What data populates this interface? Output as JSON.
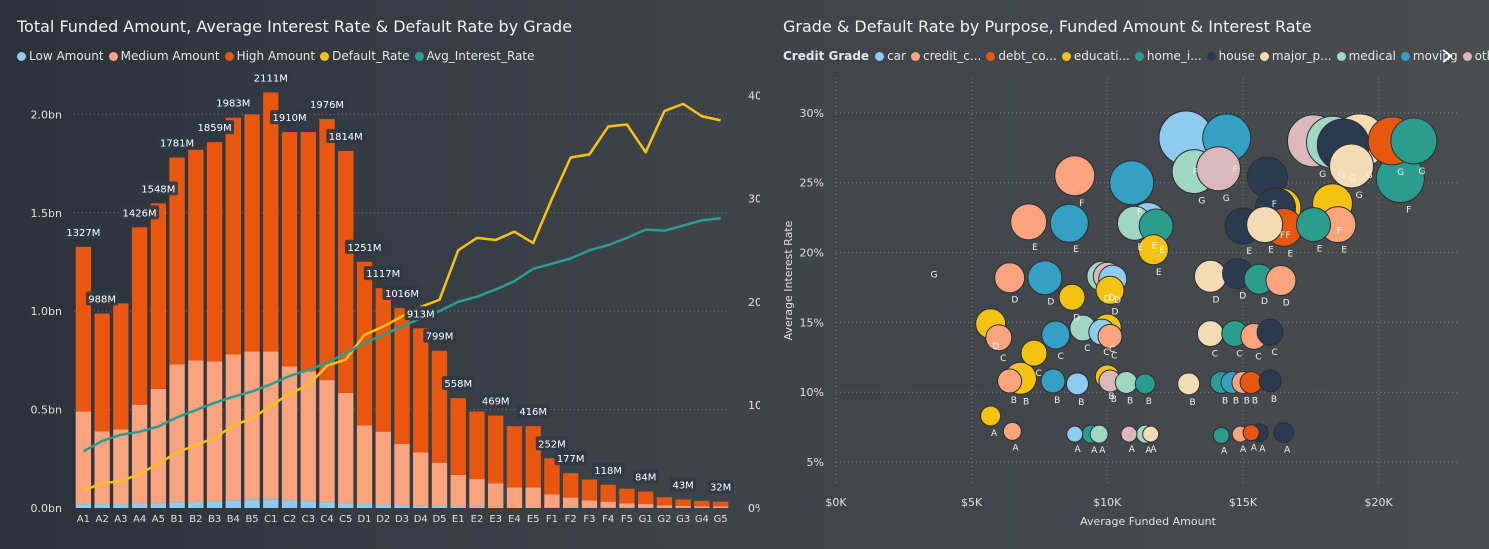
{
  "chart_data": [
    {
      "type": "bar",
      "title": "Total Funded Amount, Average Interest Rate & Default Rate by Grade",
      "categories": [
        "A1",
        "A2",
        "A3",
        "A4",
        "A5",
        "B1",
        "B2",
        "B3",
        "B4",
        "B5",
        "C1",
        "C2",
        "C3",
        "C4",
        "C5",
        "D1",
        "D2",
        "D3",
        "D4",
        "D5",
        "E1",
        "E2",
        "E3",
        "E4",
        "E5",
        "F1",
        "F2",
        "F3",
        "F4",
        "F5",
        "G1",
        "G2",
        "G3",
        "G4",
        "G5"
      ],
      "y_ticks": [
        "0.0bn",
        "0.5bn",
        "1.0bn",
        "1.5bn",
        "2.0bn"
      ],
      "y2_ticks": [
        "0%",
        "10%",
        "20%",
        "30%",
        "40%"
      ],
      "ylim": [
        0,
        2.2
      ],
      "y2lim": [
        0,
        0.42
      ],
      "total_labels": [
        "1327M",
        "988M",
        "",
        "1426M",
        "1548M",
        "1781M",
        "",
        "1859M",
        "1983M",
        "",
        "2111M",
        "1910M",
        "",
        "1976M",
        "1814M",
        "1251M",
        "1117M",
        "1016M",
        "913M",
        "799M",
        "558M",
        "",
        "469M",
        "",
        "416M",
        "252M",
        "177M",
        "",
        "118M",
        "",
        "84M",
        "",
        "43M",
        "",
        "32M"
      ],
      "series": [
        {
          "name": "Low Amount",
          "color": "#8fcdf0",
          "kind": "bar",
          "values": [
            0.02,
            0.02,
            0.02,
            0.025,
            0.025,
            0.03,
            0.03,
            0.035,
            0.04,
            0.045,
            0.045,
            0.04,
            0.035,
            0.03,
            0.025,
            0.02,
            0.018,
            0.015,
            0.012,
            0.01,
            0.008,
            0.007,
            0.006,
            0.005,
            0.005,
            0.004,
            0.003,
            0.003,
            0.002,
            0.002,
            0.002,
            0.001,
            0.001,
            0.001,
            0.001
          ]
        },
        {
          "name": "Medium Amount",
          "color": "#f9a47f",
          "kind": "bar",
          "values": [
            0.47,
            0.37,
            0.38,
            0.5,
            0.58,
            0.7,
            0.72,
            0.71,
            0.74,
            0.75,
            0.75,
            0.68,
            0.66,
            0.62,
            0.56,
            0.4,
            0.37,
            0.31,
            0.27,
            0.22,
            0.16,
            0.14,
            0.12,
            0.1,
            0.1,
            0.065,
            0.05,
            0.035,
            0.03,
            0.022,
            0.018,
            0.012,
            0.01,
            0.008,
            0.007
          ]
        },
        {
          "name": "High Amount",
          "color": "#e8560f",
          "kind": "bar",
          "values": [
            0.837,
            0.598,
            0.64,
            0.901,
            0.943,
            1.051,
            1.07,
            1.114,
            1.203,
            1.205,
            1.316,
            1.19,
            1.215,
            1.326,
            1.229,
            0.831,
            0.729,
            0.691,
            0.631,
            0.569,
            0.39,
            0.343,
            0.344,
            0.311,
            0.311,
            0.183,
            0.124,
            0.107,
            0.086,
            0.074,
            0.064,
            0.042,
            0.032,
            0.027,
            0.024
          ]
        },
        {
          "name": "Default_Rate",
          "color": "#f5c214",
          "kind": "line",
          "values": [
            0.017,
            0.024,
            0.026,
            0.033,
            0.043,
            0.054,
            0.061,
            0.068,
            0.08,
            0.087,
            0.099,
            0.111,
            0.119,
            0.138,
            0.144,
            0.168,
            0.176,
            0.186,
            0.195,
            0.202,
            0.25,
            0.262,
            0.26,
            0.268,
            0.257,
            0.3,
            0.34,
            0.343,
            0.37,
            0.372,
            0.345,
            0.385,
            0.392,
            0.38,
            0.376
          ]
        },
        {
          "name": "Avg_Interest_Rate",
          "color": "#2a9d8f",
          "kind": "line",
          "values": [
            0.055,
            0.065,
            0.071,
            0.074,
            0.079,
            0.088,
            0.095,
            0.102,
            0.108,
            0.113,
            0.12,
            0.128,
            0.134,
            0.141,
            0.15,
            0.16,
            0.168,
            0.176,
            0.184,
            0.191,
            0.2,
            0.205,
            0.212,
            0.22,
            0.232,
            0.237,
            0.242,
            0.25,
            0.255,
            0.262,
            0.27,
            0.269,
            0.274,
            0.279,
            0.281
          ]
        }
      ]
    },
    {
      "type": "scatter",
      "title": "Grade & Default Rate by Purpose, Funded Amount & Interest Rate",
      "xlabel": "Average Funded Amount",
      "ylabel": "Average Interest Rate",
      "x_ticks": [
        "$0K",
        "$5K",
        "$10K",
        "$15K",
        "$20K"
      ],
      "y_ticks": [
        "5%",
        "10%",
        "15%",
        "20%",
        "25%",
        "30%"
      ],
      "xlim": [
        0,
        23000
      ],
      "ylim": [
        0.035,
        0.325
      ],
      "legend_title": "Credit Grade",
      "legend": [
        {
          "label": "car",
          "color": "#8fcdf0"
        },
        {
          "label": "credit_c...",
          "color": "#f9a47f"
        },
        {
          "label": "debt_co...",
          "color": "#e8560f"
        },
        {
          "label": "educati...",
          "color": "#f5c214"
        },
        {
          "label": "home_i...",
          "color": "#2a9d8f"
        },
        {
          "label": "house",
          "color": "#2b3a4e"
        },
        {
          "label": "major_p...",
          "color": "#f3dcb4"
        },
        {
          "label": "medical",
          "color": "#9fd6c4"
        },
        {
          "label": "moving",
          "color": "#34a0c4"
        },
        {
          "label": "other",
          "color": "#dbb8bc"
        }
      ],
      "points": [
        {
          "x": 3600,
          "y": 0.19,
          "r": 1,
          "c": 3,
          "g": "G"
        },
        {
          "x": 5700,
          "y": 0.083,
          "r": 10,
          "c": 3,
          "g": "A"
        },
        {
          "x": 6500,
          "y": 0.072,
          "r": 9,
          "c": 1,
          "g": "A"
        },
        {
          "x": 8800,
          "y": 0.07,
          "r": 8,
          "c": 0,
          "g": "A"
        },
        {
          "x": 9400,
          "y": 0.07,
          "r": 9,
          "c": 4,
          "g": "A"
        },
        {
          "x": 9700,
          "y": 0.07,
          "r": 9,
          "c": 7,
          "g": "A"
        },
        {
          "x": 10800,
          "y": 0.07,
          "r": 8,
          "c": 9,
          "g": "A"
        },
        {
          "x": 11400,
          "y": 0.07,
          "r": 9,
          "c": 7,
          "g": "A"
        },
        {
          "x": 11600,
          "y": 0.07,
          "r": 8,
          "c": 6,
          "g": "A"
        },
        {
          "x": 14200,
          "y": 0.069,
          "r": 8,
          "c": 4,
          "g": "A"
        },
        {
          "x": 14900,
          "y": 0.07,
          "r": 8,
          "c": 1,
          "g": "A"
        },
        {
          "x": 15300,
          "y": 0.071,
          "r": 8,
          "c": 2,
          "g": "A"
        },
        {
          "x": 15600,
          "y": 0.071,
          "r": 9,
          "c": 5,
          "g": "A"
        },
        {
          "x": 16500,
          "y": 0.071,
          "r": 10,
          "c": 5,
          "g": "A"
        },
        {
          "x": 6400,
          "y": 0.108,
          "r": 12,
          "c": 1,
          "g": "B"
        },
        {
          "x": 6800,
          "y": 0.11,
          "r": 16,
          "c": 3,
          "g": "B"
        },
        {
          "x": 8000,
          "y": 0.108,
          "r": 12,
          "c": 8,
          "g": "B"
        },
        {
          "x": 8900,
          "y": 0.106,
          "r": 11,
          "c": 0,
          "g": "B"
        },
        {
          "x": 10000,
          "y": 0.111,
          "r": 12,
          "c": 3,
          "g": "B"
        },
        {
          "x": 10100,
          "y": 0.108,
          "r": 11,
          "c": 9,
          "g": "B"
        },
        {
          "x": 10700,
          "y": 0.107,
          "r": 11,
          "c": 7,
          "g": "B"
        },
        {
          "x": 11400,
          "y": 0.106,
          "r": 10,
          "c": 4,
          "g": "B"
        },
        {
          "x": 13000,
          "y": 0.106,
          "r": 11,
          "c": 6,
          "g": "B"
        },
        {
          "x": 14200,
          "y": 0.107,
          "r": 11,
          "c": 4,
          "g": "B"
        },
        {
          "x": 14600,
          "y": 0.107,
          "r": 11,
          "c": 8,
          "g": "B"
        },
        {
          "x": 15000,
          "y": 0.107,
          "r": 11,
          "c": 1,
          "g": "B"
        },
        {
          "x": 15300,
          "y": 0.107,
          "r": 11,
          "c": 2,
          "g": "B"
        },
        {
          "x": 16000,
          "y": 0.108,
          "r": 11,
          "c": 5,
          "g": "B"
        },
        {
          "x": 5700,
          "y": 0.149,
          "r": 15,
          "c": 3,
          "g": "D"
        },
        {
          "x": 6000,
          "y": 0.139,
          "r": 13,
          "c": 1,
          "g": "C"
        },
        {
          "x": 7300,
          "y": 0.128,
          "r": 13,
          "c": 3,
          "g": "C"
        },
        {
          "x": 8100,
          "y": 0.141,
          "r": 14,
          "c": 8,
          "g": "C"
        },
        {
          "x": 9100,
          "y": 0.146,
          "r": 13,
          "c": 7,
          "g": "C"
        },
        {
          "x": 9800,
          "y": 0.143,
          "r": 13,
          "c": 0,
          "g": "C"
        },
        {
          "x": 10000,
          "y": 0.146,
          "r": 14,
          "c": 3,
          "g": "C"
        },
        {
          "x": 10100,
          "y": 0.14,
          "r": 12,
          "c": 1,
          "g": "C"
        },
        {
          "x": 13800,
          "y": 0.142,
          "r": 13,
          "c": 6,
          "g": "C"
        },
        {
          "x": 14700,
          "y": 0.142,
          "r": 13,
          "c": 4,
          "g": "C"
        },
        {
          "x": 15400,
          "y": 0.14,
          "r": 13,
          "c": 1,
          "g": "C"
        },
        {
          "x": 16000,
          "y": 0.143,
          "r": 13,
          "c": 5,
          "g": "C"
        },
        {
          "x": 6400,
          "y": 0.182,
          "r": 15,
          "c": 1,
          "g": "D"
        },
        {
          "x": 7700,
          "y": 0.182,
          "r": 17,
          "c": 8,
          "g": "D"
        },
        {
          "x": 8700,
          "y": 0.168,
          "r": 13,
          "c": 3,
          "g": "D"
        },
        {
          "x": 9800,
          "y": 0.183,
          "r": 15,
          "c": 7,
          "g": "D"
        },
        {
          "x": 10000,
          "y": 0.183,
          "r": 14,
          "c": 9,
          "g": "D"
        },
        {
          "x": 10200,
          "y": 0.181,
          "r": 14,
          "c": 0,
          "g": "D"
        },
        {
          "x": 10100,
          "y": 0.173,
          "r": 14,
          "c": 3,
          "g": "D"
        },
        {
          "x": 13800,
          "y": 0.183,
          "r": 16,
          "c": 6,
          "g": "D"
        },
        {
          "x": 14800,
          "y": 0.185,
          "r": 15,
          "c": 5,
          "g": "D"
        },
        {
          "x": 15600,
          "y": 0.181,
          "r": 15,
          "c": 4,
          "g": "D"
        },
        {
          "x": 16400,
          "y": 0.18,
          "r": 15,
          "c": 1,
          "g": "D"
        },
        {
          "x": 7100,
          "y": 0.222,
          "r": 18,
          "c": 1,
          "g": "E"
        },
        {
          "x": 8600,
          "y": 0.221,
          "r": 19,
          "c": 8,
          "g": "E"
        },
        {
          "x": 11000,
          "y": 0.221,
          "r": 17,
          "c": 7,
          "g": "E"
        },
        {
          "x": 11500,
          "y": 0.223,
          "r": 18,
          "c": 0,
          "g": "E"
        },
        {
          "x": 11800,
          "y": 0.219,
          "r": 17,
          "c": 4,
          "g": "E"
        },
        {
          "x": 11700,
          "y": 0.202,
          "r": 15,
          "c": 3,
          "g": "E"
        },
        {
          "x": 15000,
          "y": 0.219,
          "r": 18,
          "c": 5,
          "g": "E"
        },
        {
          "x": 15800,
          "y": 0.22,
          "r": 18,
          "c": 6,
          "g": "E"
        },
        {
          "x": 16500,
          "y": 0.218,
          "r": 19,
          "c": 2,
          "g": "E"
        },
        {
          "x": 17600,
          "y": 0.22,
          "r": 17,
          "c": 4,
          "g": "E"
        },
        {
          "x": 18500,
          "y": 0.22,
          "r": 18,
          "c": 1,
          "g": "E"
        },
        {
          "x": 8800,
          "y": 0.255,
          "r": 20,
          "c": 1,
          "g": "F"
        },
        {
          "x": 10900,
          "y": 0.25,
          "r": 22,
          "c": 8,
          "g": "F"
        },
        {
          "x": 15900,
          "y": 0.254,
          "r": 20,
          "c": 5,
          "g": "F"
        },
        {
          "x": 16400,
          "y": 0.232,
          "r": 20,
          "c": 3,
          "g": "F"
        },
        {
          "x": 16200,
          "y": 0.232,
          "r": 20,
          "c": 5,
          "g": "F"
        },
        {
          "x": 18300,
          "y": 0.235,
          "r": 20,
          "c": 3,
          "g": "F"
        },
        {
          "x": 20800,
          "y": 0.253,
          "r": 24,
          "c": 4,
          "g": "F"
        },
        {
          "x": 12900,
          "y": 0.282,
          "r": 27,
          "c": 0,
          "g": "F"
        },
        {
          "x": 14400,
          "y": 0.282,
          "r": 24,
          "c": 8,
          "g": "F"
        },
        {
          "x": 13200,
          "y": 0.258,
          "r": 22,
          "c": 7,
          "g": "G"
        },
        {
          "x": 14100,
          "y": 0.26,
          "r": 22,
          "c": 9,
          "g": "G"
        },
        {
          "x": 17600,
          "y": 0.28,
          "r": 26,
          "c": 9,
          "g": "G"
        },
        {
          "x": 18300,
          "y": 0.279,
          "r": 26,
          "c": 7,
          "g": "G"
        },
        {
          "x": 19300,
          "y": 0.28,
          "r": 27,
          "c": 6,
          "g": "G"
        },
        {
          "x": 19000,
          "y": 0.262,
          "r": 22,
          "c": 6,
          "g": "G"
        },
        {
          "x": 20500,
          "y": 0.28,
          "r": 24,
          "c": 2,
          "g": "G"
        },
        {
          "x": 21300,
          "y": 0.28,
          "r": 23,
          "c": 4,
          "g": "G"
        },
        {
          "x": 18700,
          "y": 0.277,
          "r": 26,
          "c": 5,
          "g": "G"
        }
      ]
    }
  ]
}
